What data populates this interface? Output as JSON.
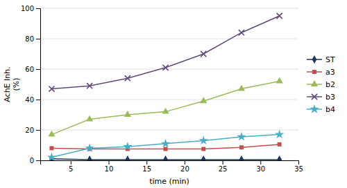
{
  "chart_data": {
    "type": "line",
    "title": "",
    "xlabel": "time (min)",
    "ylabel": "AchE Inh.\n(%)",
    "x": [
      2.5,
      7.5,
      12.5,
      17.5,
      22.5,
      27.5,
      32.5
    ],
    "xlim": [
      1,
      35
    ],
    "xticks": [
      5,
      10,
      15,
      20,
      25,
      30,
      35
    ],
    "ylim": [
      0,
      100
    ],
    "yticks": [
      0,
      20,
      40,
      60,
      80,
      100
    ],
    "grid": true,
    "legend": "right",
    "series": [
      {
        "name": "ST",
        "color": "#17375E",
        "marker": "diamond",
        "values": [
          1.0,
          0.5,
          0.5,
          0.5,
          0.5,
          0.5,
          0.5
        ]
      },
      {
        "name": "a3",
        "color": "#C0504D",
        "marker": "square",
        "values": [
          8.0,
          7.5,
          7.5,
          7.5,
          7.5,
          8.5,
          10.5
        ]
      },
      {
        "name": "b2",
        "color": "#9BBB59",
        "marker": "triangle",
        "values": [
          17.0,
          27.0,
          30.0,
          32.0,
          39.0,
          47.0,
          52.0
        ]
      },
      {
        "name": "b3",
        "color": "#604A7B",
        "marker": "x",
        "values": [
          47.0,
          49.0,
          54.0,
          61.0,
          70.0,
          84.0,
          95.0
        ]
      },
      {
        "name": "b4",
        "color": "#4BACC6",
        "marker": "star",
        "values": [
          2.0,
          8.0,
          9.0,
          11.0,
          13.0,
          15.5,
          17.0
        ]
      }
    ]
  }
}
